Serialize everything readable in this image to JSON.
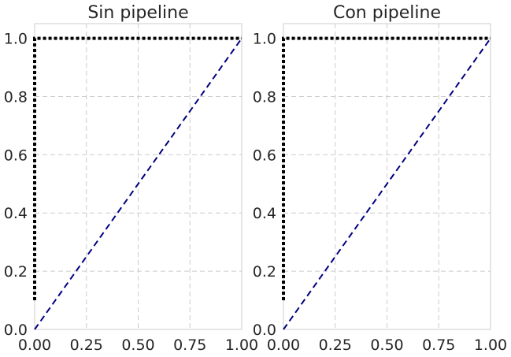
{
  "chart_data": [
    {
      "type": "line",
      "title": "Sin pipeline",
      "xlabel": "",
      "ylabel": "",
      "xlim": [
        0,
        1
      ],
      "ylim": [
        0,
        1
      ],
      "x_ticks": [
        "0.00",
        "0.25",
        "0.50",
        "0.75",
        "1.00"
      ],
      "y_ticks": [
        "0.0",
        "0.2",
        "0.4",
        "0.6",
        "0.8",
        "1.0"
      ],
      "grid": true,
      "series": [
        {
          "style": "dashed",
          "color": "#000080",
          "x": [
            0,
            1
          ],
          "y": [
            0,
            1
          ]
        },
        {
          "style": "dotted",
          "color": "#000000",
          "x": [
            0,
            0,
            1
          ],
          "y": [
            0.1,
            1.0,
            1.0
          ]
        }
      ]
    },
    {
      "type": "line",
      "title": "Con pipeline",
      "xlabel": "",
      "ylabel": "",
      "xlim": [
        0,
        1
      ],
      "ylim": [
        0,
        1
      ],
      "x_ticks": [
        "0.00",
        "0.25",
        "0.50",
        "0.75",
        "1.00"
      ],
      "y_ticks": [
        "0.0",
        "0.2",
        "0.4",
        "0.6",
        "0.8",
        "1.0"
      ],
      "grid": true,
      "series": [
        {
          "style": "dashed",
          "color": "#000080",
          "x": [
            0,
            1
          ],
          "y": [
            0,
            1
          ]
        },
        {
          "style": "dotted",
          "color": "#000000",
          "x": [
            0,
            0,
            1
          ],
          "y": [
            0.1,
            1.0,
            1.0
          ]
        }
      ]
    }
  ]
}
